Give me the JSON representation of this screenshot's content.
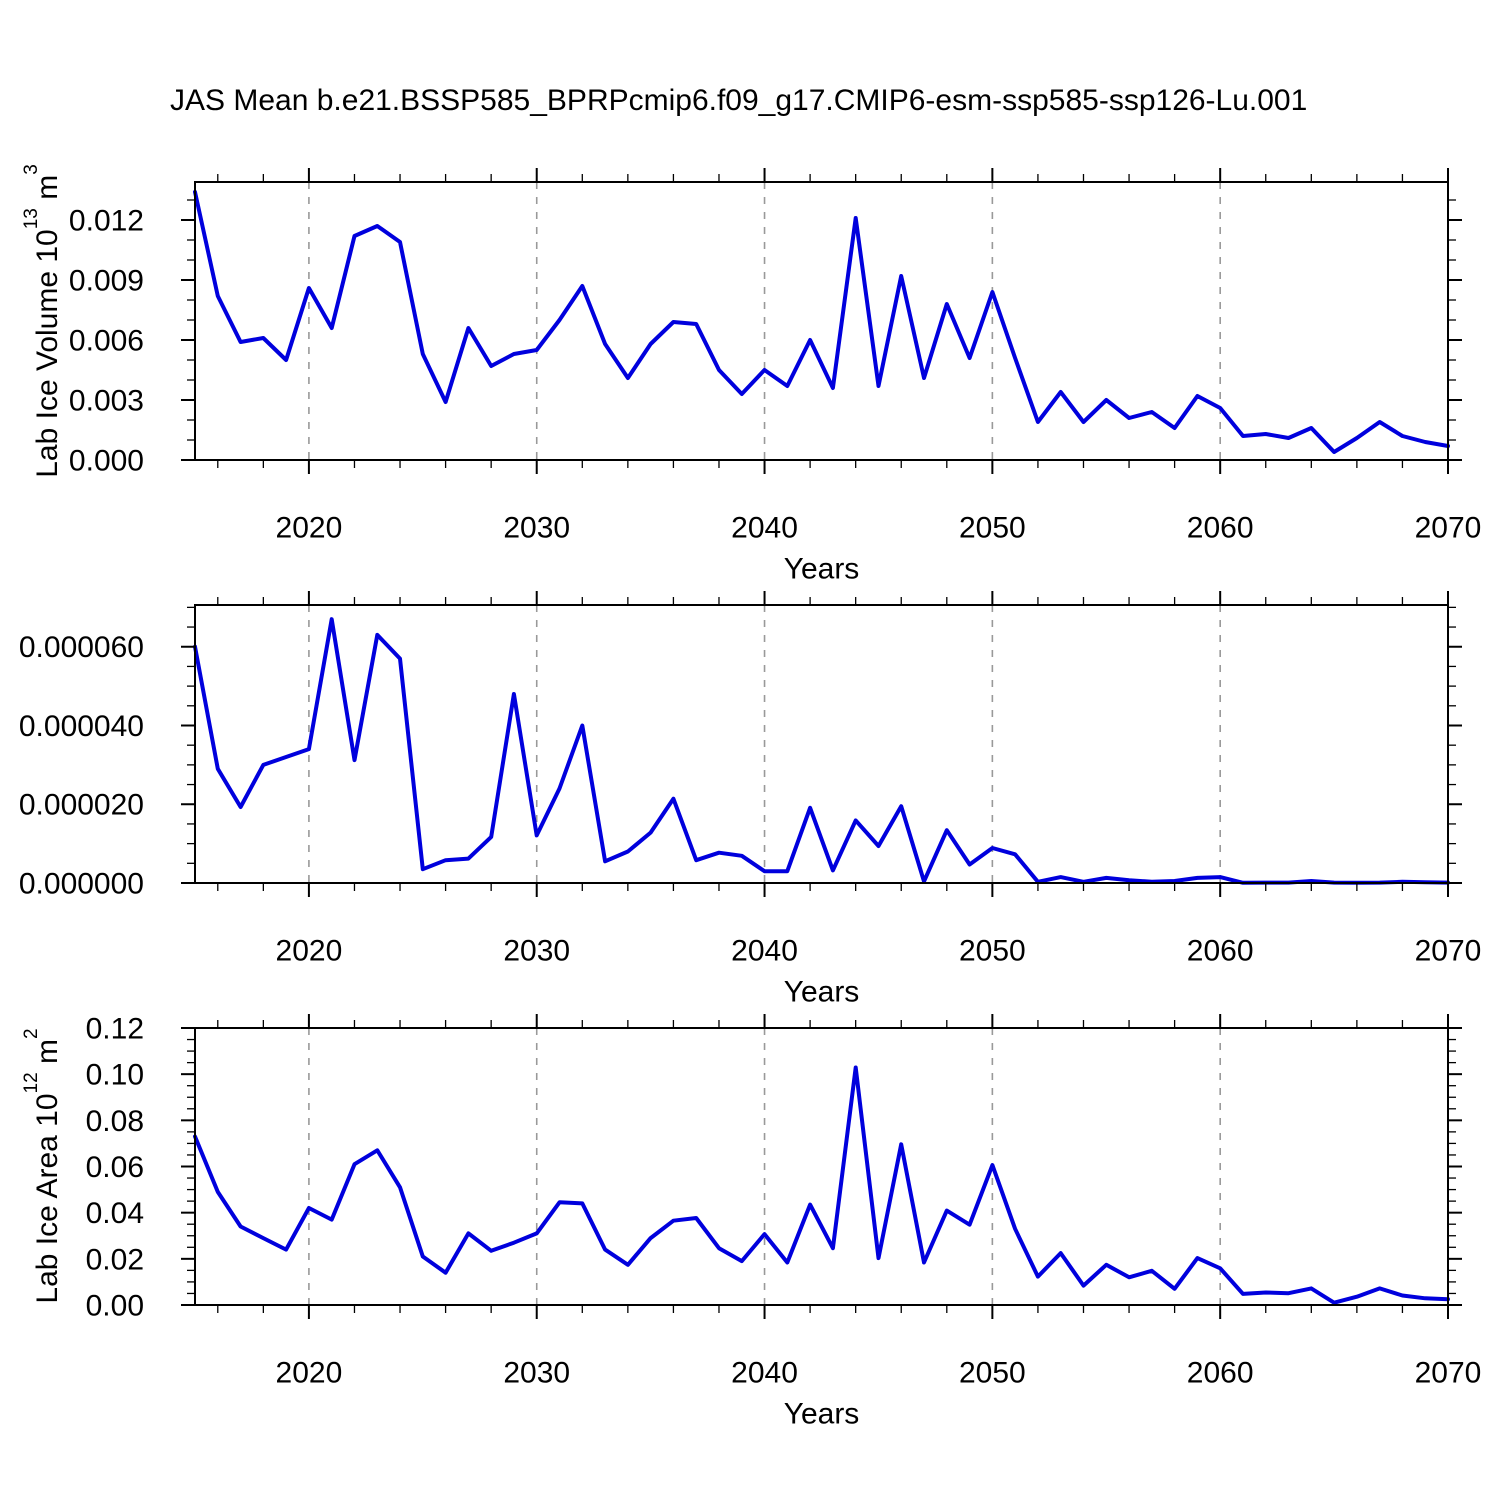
{
  "page": {
    "title": "JAS Mean b.e21.BSSP585_BPRPcmip6.f09_g17.CMIP6-esm-ssp585-ssp126-Lu.001"
  },
  "colors": {
    "line": "#0000dd",
    "grid": "#999999",
    "axis": "#000000"
  },
  "years": [
    2015,
    2016,
    2017,
    2018,
    2019,
    2020,
    2021,
    2022,
    2023,
    2024,
    2025,
    2026,
    2027,
    2028,
    2029,
    2030,
    2031,
    2032,
    2033,
    2034,
    2035,
    2036,
    2037,
    2038,
    2039,
    2040,
    2041,
    2042,
    2043,
    2044,
    2045,
    2046,
    2047,
    2048,
    2049,
    2050,
    2051,
    2052,
    2053,
    2054,
    2055,
    2056,
    2057,
    2058,
    2059,
    2060,
    2061,
    2062,
    2063,
    2064,
    2065,
    2066,
    2067,
    2068,
    2069,
    2070
  ],
  "chart_data": [
    {
      "type": "line",
      "title": "Lab Ice Volume",
      "ylabel_parts": {
        "main": "Lab Ice Volume 10",
        "sup1": "13",
        "mid": " m",
        "sup2": "3"
      },
      "xlabel": "Years",
      "xlim": [
        2015,
        2070
      ],
      "xticks": [
        2020,
        2030,
        2040,
        2050,
        2060,
        2070
      ],
      "xtick_labels": [
        "2020",
        "2030",
        "2040",
        "2050",
        "2060",
        "2070"
      ],
      "x_minor_step": 2,
      "grid_years": [
        2020,
        2030,
        2040,
        2050,
        2060
      ],
      "ylim": [
        0,
        0.0139
      ],
      "yticks": [
        0,
        0.003,
        0.006,
        0.009,
        0.012
      ],
      "ytick_labels": [
        "0.000",
        "0.003",
        "0.006",
        "0.009",
        "0.012"
      ],
      "y_minor_step": 0.001,
      "values": [
        0.0134,
        0.0082,
        0.0059,
        0.0061,
        0.005,
        0.0086,
        0.0066,
        0.0112,
        0.0117,
        0.0109,
        0.0053,
        0.0029,
        0.0066,
        0.0047,
        0.0053,
        0.0055,
        0.007,
        0.0087,
        0.0058,
        0.0041,
        0.0058,
        0.0069,
        0.0068,
        0.0045,
        0.0033,
        0.0045,
        0.0037,
        0.006,
        0.0036,
        0.0121,
        0.0037,
        0.0092,
        0.0041,
        0.0078,
        0.0051,
        0.0084,
        0.0051,
        0.0019,
        0.0034,
        0.0019,
        0.003,
        0.0021,
        0.0024,
        0.0016,
        0.0032,
        0.0026,
        0.0012,
        0.0013,
        0.0011,
        0.0016,
        0.0004,
        0.0011,
        0.0019,
        0.0012,
        0.0009,
        0.0007
      ]
    },
    {
      "type": "line",
      "title": "",
      "ylabel_parts": null,
      "xlabel": "Years",
      "xlim": [
        2015,
        2070
      ],
      "xticks": [
        2020,
        2030,
        2040,
        2050,
        2060,
        2070
      ],
      "xtick_labels": [
        "2020",
        "2030",
        "2040",
        "2050",
        "2060",
        "2070"
      ],
      "x_minor_step": 2,
      "grid_years": [
        2020,
        2030,
        2040,
        2050,
        2060
      ],
      "ylim": [
        0,
        7.06e-05
      ],
      "yticks": [
        0,
        2e-05,
        4e-05,
        6e-05
      ],
      "ytick_labels": [
        "0.000000",
        "0.000020",
        "0.000040",
        "0.000060"
      ],
      "y_minor_step": 5e-06,
      "values": [
        6e-05,
        2.9e-05,
        1.93e-05,
        3e-05,
        3.2e-05,
        3.4e-05,
        6.7e-05,
        3.12e-05,
        6.3e-05,
        5.7e-05,
        3.5e-06,
        5.8e-06,
        6.2e-06,
        1.17e-05,
        4.8e-05,
        1.21e-05,
        2.4e-05,
        4e-05,
        5.5e-06,
        8e-06,
        1.28e-05,
        2.14e-05,
        5.8e-06,
        7.7e-06,
        6.9e-06,
        3e-06,
        3e-06,
        1.91e-05,
        3.2e-06,
        1.59e-05,
        9.4e-06,
        1.95e-05,
        4e-07,
        1.34e-05,
        4.7e-06,
        8.9e-06,
        7.3e-06,
        3e-07,
        1.5e-06,
        3e-07,
        1.3e-06,
        7e-07,
        3e-07,
        5e-07,
        1.3e-06,
        1.5e-06,
        5e-08,
        1e-07,
        1e-07,
        5e-07,
        1e-07,
        5e-08,
        1e-07,
        3e-07,
        2e-07,
        1e-07
      ]
    },
    {
      "type": "line",
      "title": "Lab Ice Area",
      "ylabel_parts": {
        "main": "Lab Ice Area 10",
        "sup1": "12",
        "mid": " m",
        "sup2": "2"
      },
      "xlabel": "Years",
      "xlim": [
        2015,
        2070
      ],
      "xticks": [
        2020,
        2030,
        2040,
        2050,
        2060,
        2070
      ],
      "xtick_labels": [
        "2020",
        "2030",
        "2040",
        "2050",
        "2060",
        "2070"
      ],
      "x_minor_step": 2,
      "grid_years": [
        2020,
        2030,
        2040,
        2050,
        2060
      ],
      "ylim": [
        0,
        0.12
      ],
      "yticks": [
        0,
        0.02,
        0.04,
        0.06,
        0.08,
        0.1,
        0.12
      ],
      "ytick_labels": [
        "0.00",
        "0.02",
        "0.04",
        "0.06",
        "0.08",
        "0.10",
        "0.12"
      ],
      "y_minor_step": 0.005,
      "values": [
        0.073,
        0.049,
        0.034,
        0.029,
        0.024,
        0.042,
        0.037,
        0.061,
        0.067,
        0.051,
        0.021,
        0.014,
        0.031,
        0.0235,
        0.027,
        0.031,
        0.0445,
        0.044,
        0.024,
        0.0174,
        0.029,
        0.0365,
        0.0377,
        0.0246,
        0.019,
        0.0307,
        0.0184,
        0.0435,
        0.0246,
        0.1029,
        0.0203,
        0.0696,
        0.0184,
        0.0409,
        0.0348,
        0.0606,
        0.033,
        0.0123,
        0.0225,
        0.0084,
        0.0174,
        0.012,
        0.0148,
        0.007,
        0.0203,
        0.0159,
        0.0048,
        0.0054,
        0.0051,
        0.0072,
        0.001,
        0.0036,
        0.0072,
        0.0041,
        0.0029,
        0.0025
      ]
    }
  ]
}
